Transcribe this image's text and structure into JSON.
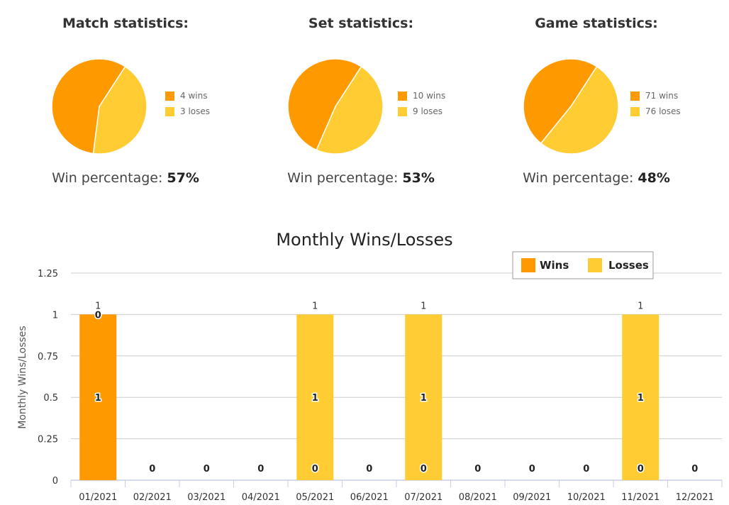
{
  "stats": [
    {
      "title": "Match statistics:",
      "wins": 4,
      "losses": 3,
      "wins_label": "4 wins",
      "losses_label": "3 loses",
      "pct_label": "Win percentage: ",
      "pct_value": "57%"
    },
    {
      "title": "Set statistics:",
      "wins": 10,
      "losses": 9,
      "wins_label": "10 wins",
      "losses_label": "9 loses",
      "pct_label": "Win percentage: ",
      "pct_value": "53%"
    },
    {
      "title": "Game statistics:",
      "wins": 71,
      "losses": 76,
      "wins_label": "71 wins",
      "losses_label": "76 loses",
      "pct_label": "Win percentage: ",
      "pct_value": "48%"
    }
  ],
  "colors": {
    "wins": "#FF9900",
    "losses": "#FFCC33"
  },
  "chart_data": {
    "type": "bar",
    "stacked": true,
    "title": "Monthly Wins/Losses",
    "ylabel": "Monthly Wins/Losses",
    "xlabel": "",
    "categories": [
      "01/2021",
      "02/2021",
      "03/2021",
      "04/2021",
      "05/2021",
      "06/2021",
      "07/2021",
      "08/2021",
      "09/2021",
      "10/2021",
      "11/2021",
      "12/2021"
    ],
    "series": [
      {
        "name": "Wins",
        "values": [
          1,
          0,
          0,
          0,
          0,
          0,
          0,
          0,
          0,
          0,
          0,
          0
        ]
      },
      {
        "name": "Losses",
        "values": [
          0,
          0,
          0,
          0,
          1,
          0,
          1,
          0,
          0,
          0,
          1,
          0
        ]
      }
    ],
    "totals": [
      1,
      0,
      0,
      0,
      1,
      0,
      1,
      0,
      0,
      0,
      1,
      0
    ],
    "ylim": [
      0,
      1.25
    ],
    "yticks": [
      "0",
      "0.25",
      "0.5",
      "0.75",
      "1",
      "1.25"
    ],
    "grid": true,
    "legend_position": "top-right"
  }
}
